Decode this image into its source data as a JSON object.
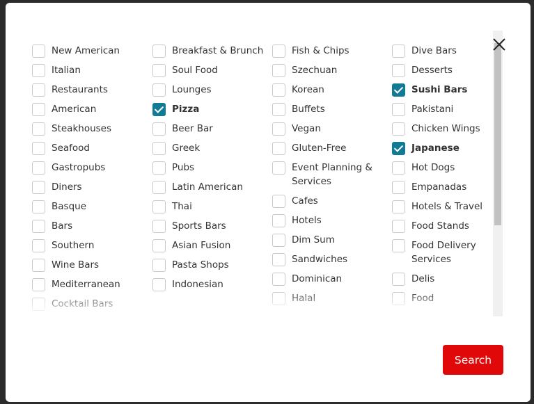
{
  "colors": {
    "checkbox_checked": "#117a94",
    "search_button": "#e00808"
  },
  "close_icon": "close-icon",
  "columns": [
    [
      {
        "label": "New American"
      },
      {
        "label": "Italian"
      },
      {
        "label": "Restaurants"
      },
      {
        "label": "American"
      },
      {
        "label": "Steakhouses"
      },
      {
        "label": "Seafood"
      },
      {
        "label": "Gastropubs"
      },
      {
        "label": "Diners"
      },
      {
        "label": "Basque"
      },
      {
        "label": "Bars"
      },
      {
        "label": "Southern"
      },
      {
        "label": "Wine Bars"
      },
      {
        "label": "Mediterranean"
      },
      {
        "label": "Cocktail Bars"
      }
    ],
    [
      {
        "label": "Breakfast & Brunch"
      },
      {
        "label": "Soul Food"
      },
      {
        "label": "Lounges"
      },
      {
        "label": "Pizza",
        "checked": true
      },
      {
        "label": "Beer Bar"
      },
      {
        "label": "Greek"
      },
      {
        "label": "Pubs"
      },
      {
        "label": "Latin American"
      },
      {
        "label": "Thai"
      },
      {
        "label": "Sports Bars"
      },
      {
        "label": "Asian Fusion"
      },
      {
        "label": "Pasta Shops"
      },
      {
        "label": "Indonesian"
      }
    ],
    [
      {
        "label": "Fish & Chips"
      },
      {
        "label": "Szechuan"
      },
      {
        "label": "Korean"
      },
      {
        "label": "Buffets"
      },
      {
        "label": "Vegan"
      },
      {
        "label": "Gluten-Free"
      },
      {
        "label": "Event Planning & Services"
      },
      {
        "label": "Cafes"
      },
      {
        "label": "Hotels"
      },
      {
        "label": "Dim Sum"
      },
      {
        "label": "Sandwiches"
      },
      {
        "label": "Dominican"
      },
      {
        "label": "Halal"
      }
    ],
    [
      {
        "label": "Dive Bars"
      },
      {
        "label": "Desserts"
      },
      {
        "label": "Sushi Bars",
        "checked": true
      },
      {
        "label": "Pakistani"
      },
      {
        "label": "Chicken Wings"
      },
      {
        "label": "Japanese",
        "checked": true
      },
      {
        "label": "Hot Dogs"
      },
      {
        "label": "Empanadas"
      },
      {
        "label": "Hotels & Travel"
      },
      {
        "label": "Food Stands"
      },
      {
        "label": "Food Delivery Services"
      },
      {
        "label": "Delis"
      },
      {
        "label": "Food"
      }
    ]
  ],
  "search_label": "Search"
}
